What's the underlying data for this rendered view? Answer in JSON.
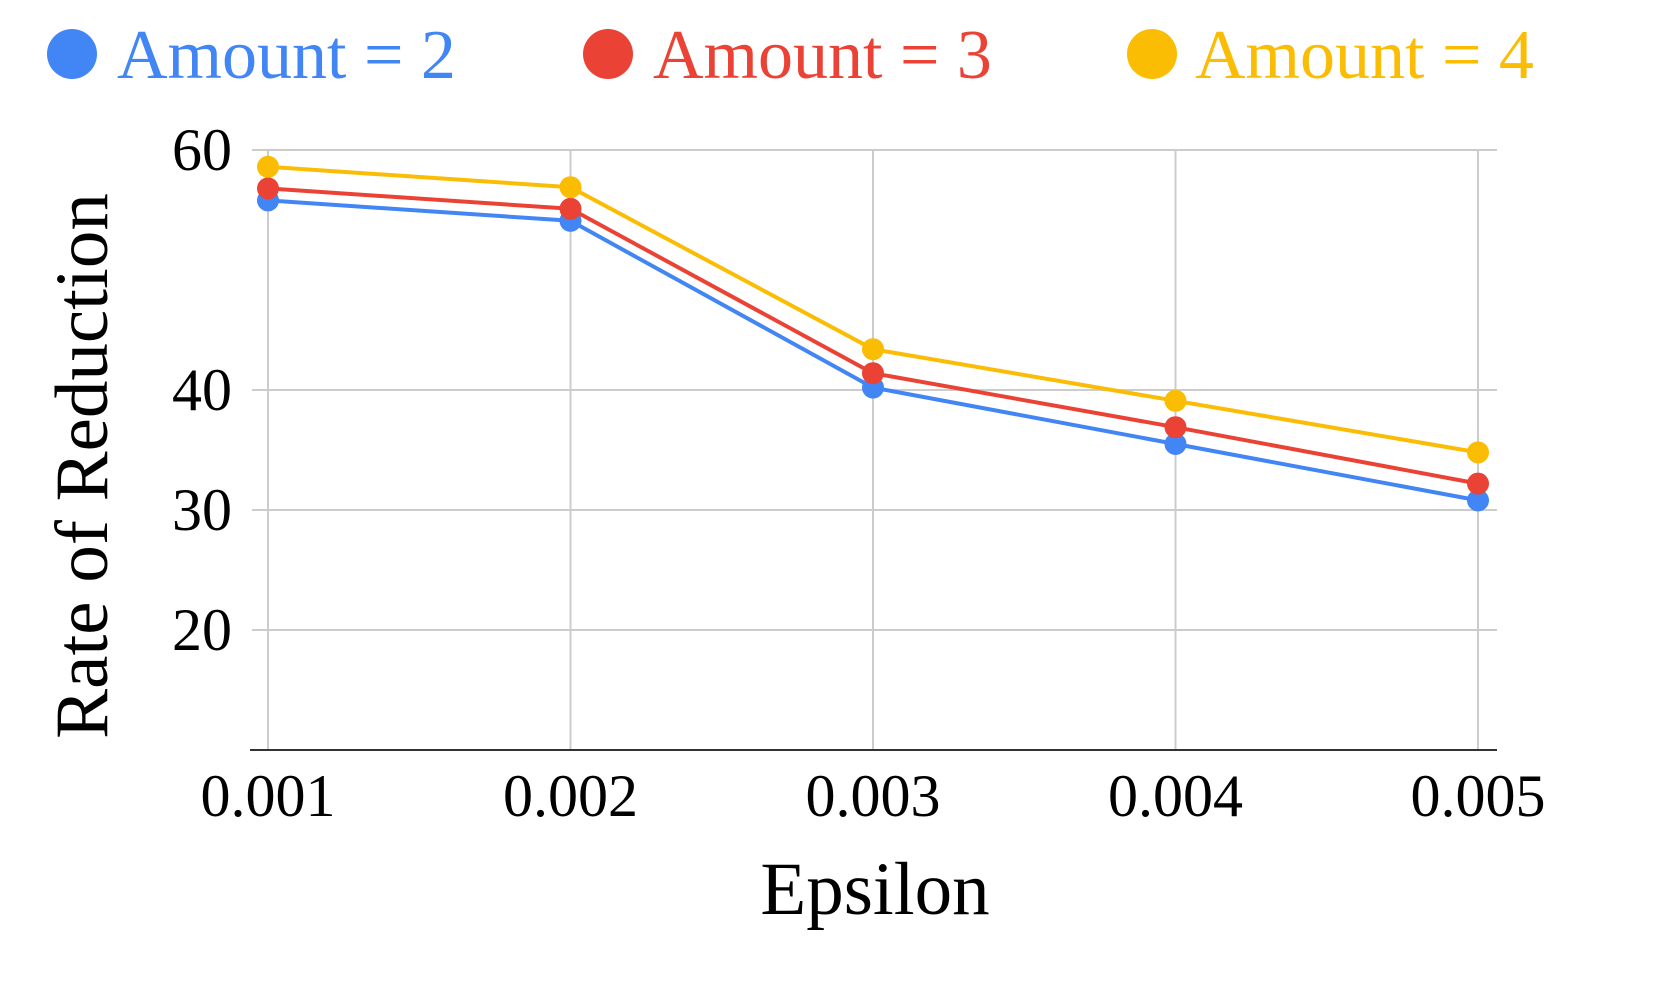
{
  "chart_data": {
    "type": "line",
    "title": "",
    "xlabel": "Epsilon",
    "ylabel": "Rate of Reduction",
    "categories": [
      "0.001",
      "0.002",
      "0.003",
      "0.004",
      "0.005"
    ],
    "ylim": [
      10,
      60
    ],
    "yticks": [
      "20",
      "30",
      "40",
      "60"
    ],
    "yticks_values": [
      20,
      30,
      40,
      60
    ],
    "grid": true,
    "legend_position": "top",
    "series": [
      {
        "name": "Amount = 2",
        "color": "#4285f4",
        "values": [
          55.8,
          54.1,
          40.2,
          35.5,
          30.8
        ]
      },
      {
        "name": "Amount = 3",
        "color": "#ea4335",
        "values": [
          56.8,
          55.1,
          41.4,
          36.9,
          32.2
        ]
      },
      {
        "name": "Amount = 4",
        "color": "#fbbc04",
        "values": [
          58.6,
          56.9,
          43.4,
          39.1,
          34.8
        ]
      }
    ]
  }
}
